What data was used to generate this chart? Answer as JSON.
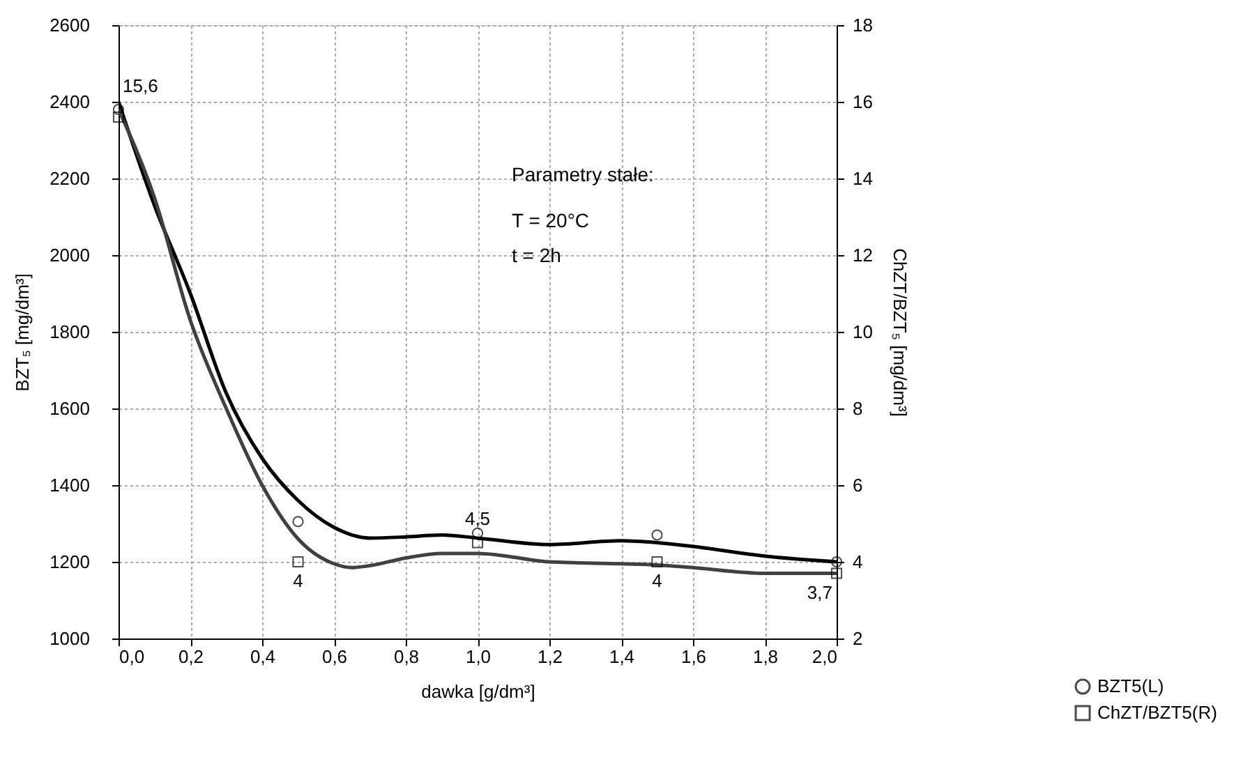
{
  "chart_data": {
    "type": "scatter",
    "xlabel": "dawka [g/dm³]",
    "ylabel": "BZT₅ [mg/dm³]",
    "y2label": "ChZT/BZT₅ [mg/dm³]",
    "xlim": [
      0,
      2
    ],
    "xticks": [
      {
        "value": 0,
        "label": "0,0"
      },
      {
        "value": 0.2,
        "label": "0,2"
      },
      {
        "value": 0.4,
        "label": "0,4"
      },
      {
        "value": 0.6,
        "label": "0,6"
      },
      {
        "value": 0.8,
        "label": "0,8"
      },
      {
        "value": 1.0,
        "label": "1,0"
      },
      {
        "value": 1.2,
        "label": "1,2"
      },
      {
        "value": 1.4,
        "label": "1,4"
      },
      {
        "value": 1.6,
        "label": "1,6"
      },
      {
        "value": 1.8,
        "label": "1,8"
      },
      {
        "value": 2.0,
        "label": "2,0"
      }
    ],
    "ylim": [
      1000,
      2600
    ],
    "yticks": [
      1000,
      1200,
      1400,
      1600,
      1800,
      2000,
      2200,
      2400,
      2600
    ],
    "y2lim": [
      2,
      18
    ],
    "y2ticks": [
      2,
      4,
      6,
      8,
      10,
      12,
      14,
      16,
      18
    ],
    "grid": true,
    "legend": "bottom right",
    "annotations": [
      "Parametry stałe:",
      "T = 20°C",
      "t = 2h"
    ],
    "series": [
      {
        "type": "line",
        "color": "#000000",
        "x": [
          0,
          0.1,
          0.2,
          0.3,
          0.4,
          0.5,
          0.6,
          0.7,
          0.8,
          0.9,
          1.0,
          1.2,
          1.4,
          1.5,
          1.6,
          1.8,
          2.0
        ],
        "values": [
          2400,
          2130,
          1900,
          1640,
          1470,
          1360,
          1290,
          1262,
          1265,
          1270,
          1262,
          1245,
          1255,
          1250,
          1240,
          1215,
          1200
        ]
      },
      {
        "type": "line",
        "axis": "y2",
        "color": "#404040",
        "x": [
          0,
          0.1,
          0.2,
          0.3,
          0.4,
          0.5,
          0.6,
          0.65,
          0.7,
          0.8,
          0.9,
          1.0,
          1.2,
          1.4,
          1.5,
          1.6,
          1.8,
          2.0
        ],
        "values": [
          15.8,
          13.5,
          10.3,
          8,
          6,
          4.6,
          3.95,
          3.85,
          3.9,
          4.1,
          4.22,
          4.22,
          4.0,
          3.95,
          3.92,
          3.85,
          3.7,
          3.7
        ]
      },
      {
        "name": "BZT5(L)",
        "marker": "circle",
        "color": "#000000",
        "x": [
          0,
          0.5,
          1.0,
          1.5,
          2.0
        ],
        "values": [
          2380,
          1305,
          1275,
          1270,
          1200
        ]
      },
      {
        "name": "ChZT/BZT5(R)",
        "axis": "y2",
        "marker": "square",
        "color": "#000000",
        "x": [
          0,
          0.5,
          1.0,
          1.5,
          2.0
        ],
        "values": [
          15.6,
          4,
          4.5,
          4,
          3.7
        ],
        "value_labels": [
          "15,6",
          "4",
          "4,5",
          "4",
          "3,7"
        ]
      }
    ]
  }
}
